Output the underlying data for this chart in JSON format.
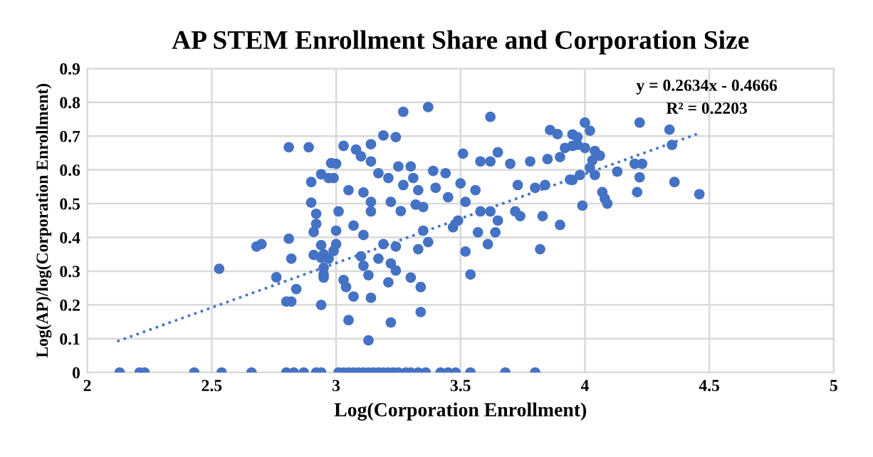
{
  "chart_data": {
    "type": "scatter",
    "title": "AP STEM Enrollment Share and Corporation Size",
    "xlabel": "Log(Corporation Enrollment)",
    "ylabel": "Log(AP)/log(Corporation Enrollment)",
    "xlim": [
      2,
      5
    ],
    "xticks": [
      2,
      2.5,
      3,
      3.5,
      4,
      4.5,
      5
    ],
    "ylim": [
      0,
      0.9
    ],
    "yticks": [
      0,
      0.1,
      0.2,
      0.3,
      0.4,
      0.5,
      0.6,
      0.7,
      0.8,
      0.9
    ],
    "grid": true,
    "legend": false,
    "annotations": [
      "y = 0.2634x - 0.4666",
      "R² = 0.2203"
    ],
    "series": [
      {
        "color": "#4472c4",
        "marker": "circle",
        "x": [
          2.13,
          2.21,
          2.23,
          2.43,
          2.54,
          2.66,
          2.8,
          2.83,
          2.87,
          2.92,
          2.94,
          3.01,
          3.03,
          3.05,
          3.07,
          3.09,
          3.11,
          3.13,
          3.15,
          3.17,
          3.19,
          3.21,
          3.23,
          3.25,
          3.28,
          3.3,
          3.33,
          3.36,
          3.42,
          3.45,
          3.48,
          3.54,
          3.68,
          3.8,
          2.81,
          2.89,
          2.94,
          3.0,
          2.99,
          2.9,
          2.9,
          2.92,
          2.92,
          2.91,
          2.68,
          2.7,
          2.81,
          2.82,
          2.91,
          2.94,
          2.53,
          2.76,
          2.8,
          2.82,
          2.84,
          2.94,
          2.94,
          2.95,
          2.95,
          2.95,
          2.99,
          3.27,
          3.37,
          3.62,
          3.86,
          3.89,
          3.97,
          3.19,
          3.24,
          3.03,
          3.08,
          3.1,
          3.14,
          3.14,
          2.98,
          2.97,
          3.51,
          3.65,
          3.58,
          3.62,
          3.7,
          3.78,
          3.85,
          3.9,
          3.95,
          3.05,
          3.11,
          3.17,
          3.21,
          3.25,
          3.3,
          3.31,
          3.33,
          3.27,
          3.22,
          3.26,
          3.32,
          3.35,
          3.39,
          3.44,
          3.4,
          3.45,
          3.5,
          3.52,
          3.47,
          3.49,
          3.56,
          3.58,
          3.62,
          3.65,
          3.64,
          3.57,
          3.61,
          3.52,
          3.54,
          3.73,
          3.72,
          3.74,
          3.8,
          3.84,
          3.83,
          3.9,
          3.82,
          3.95,
          3.01,
          3.0,
          3.0,
          2.97,
          3.07,
          3.11,
          3.14,
          3.19,
          3.24,
          3.1,
          3.11,
          3.13,
          3.17,
          3.22,
          3.24,
          3.21,
          3.3,
          3.34,
          3.03,
          3.04,
          3.07,
          3.14,
          3.05,
          3.22,
          3.34,
          3.13,
          2.95,
          3.33,
          3.35,
          3.37,
          3.14,
          4.0,
          4.02,
          4.22,
          4.34,
          4.35,
          3.95,
          3.92,
          3.97,
          4.0,
          4.04,
          4.06,
          4.03,
          4.02,
          4.04,
          3.98,
          3.94,
          4.13,
          4.2,
          4.23,
          4.22,
          4.36,
          4.21,
          4.46,
          4.07,
          4.08,
          4.09,
          3.99
        ],
        "values": [
          0,
          0,
          0,
          0,
          0,
          0,
          0,
          0,
          0,
          0,
          0,
          0,
          0,
          0,
          0,
          0,
          0,
          0,
          0,
          0,
          0,
          0,
          0,
          0,
          0,
          0,
          0,
          0,
          0,
          0,
          0,
          0,
          0,
          0,
          0.667,
          0.667,
          0.587,
          0.618,
          0.576,
          0.564,
          0.503,
          0.47,
          0.44,
          0.416,
          0.373,
          0.38,
          0.396,
          0.337,
          0.348,
          0.377,
          0.307,
          0.282,
          0.21,
          0.21,
          0.247,
          0.2,
          0.34,
          0.31,
          0.29,
          0.35,
          0.36,
          0.772,
          0.786,
          0.757,
          0.718,
          0.706,
          0.697,
          0.702,
          0.697,
          0.671,
          0.66,
          0.64,
          0.625,
          0.676,
          0.62,
          0.576,
          0.648,
          0.652,
          0.625,
          0.625,
          0.618,
          0.625,
          0.632,
          0.638,
          0.671,
          0.54,
          0.533,
          0.59,
          0.576,
          0.61,
          0.61,
          0.576,
          0.54,
          0.555,
          0.505,
          0.478,
          0.497,
          0.49,
          0.597,
          0.59,
          0.547,
          0.519,
          0.56,
          0.505,
          0.43,
          0.45,
          0.54,
          0.477,
          0.477,
          0.45,
          0.415,
          0.415,
          0.38,
          0.358,
          0.29,
          0.555,
          0.477,
          0.463,
          0.547,
          0.555,
          0.463,
          0.437,
          0.365,
          0.57,
          0.477,
          0.42,
          0.38,
          0.337,
          0.435,
          0.407,
          0.477,
          0.38,
          0.373,
          0.344,
          0.316,
          0.288,
          0.337,
          0.323,
          0.302,
          0.267,
          0.281,
          0.253,
          0.274,
          0.253,
          0.225,
          0.221,
          0.155,
          0.148,
          0.179,
          0.095,
          0.281,
          0.365,
          0.42,
          0.386,
          0.505,
          0.74,
          0.716,
          0.74,
          0.719,
          0.674,
          0.705,
          0.665,
          0.674,
          0.665,
          0.656,
          0.642,
          0.628,
          0.606,
          0.585,
          0.585,
          0.571,
          0.595,
          0.618,
          0.618,
          0.578,
          0.564,
          0.534,
          0.528,
          0.534,
          0.515,
          0.5,
          0.494
        ]
      },
      {
        "type": "line",
        "color": "#4472c4",
        "marker": "none",
        "line_style": "dotted",
        "x": [
          2.12,
          4.45
        ],
        "values": [
          0.092,
          0.706
        ]
      }
    ]
  }
}
